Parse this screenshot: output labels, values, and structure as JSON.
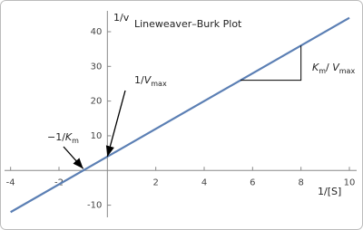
{
  "chart_data": {
    "type": "line",
    "title": "Lineweaver–Burk Plot",
    "x_label": "1/[S]",
    "y_label": "1/v",
    "x": [
      -4,
      10
    ],
    "series": [
      {
        "color": "#5b7fb4",
        "values": [
          -12,
          44
        ]
      }
    ],
    "xlim": [
      -4.25,
      10.3
    ],
    "ylim": [
      -13.5,
      46
    ],
    "xticks": [
      -4,
      -2,
      2,
      4,
      6,
      8,
      10
    ],
    "yticks": [
      -10,
      10,
      20,
      30,
      40
    ],
    "annotations": [
      {
        "parts": [
          {
            "text": "1/"
          },
          {
            "text": "V",
            "italic": true
          },
          {
            "text": "max",
            "sub": true
          }
        ]
      },
      {
        "parts": [
          {
            "text": "−1/"
          },
          {
            "text": "K",
            "italic": true
          },
          {
            "text": "m",
            "sub": true
          }
        ]
      },
      {
        "parts": [
          {
            "text": "K",
            "italic": true
          },
          {
            "text": "m",
            "sub": true
          },
          {
            "text": "/ "
          },
          {
            "text": "V",
            "italic": true
          },
          {
            "text": "max",
            "sub": true
          }
        ]
      }
    ]
  }
}
